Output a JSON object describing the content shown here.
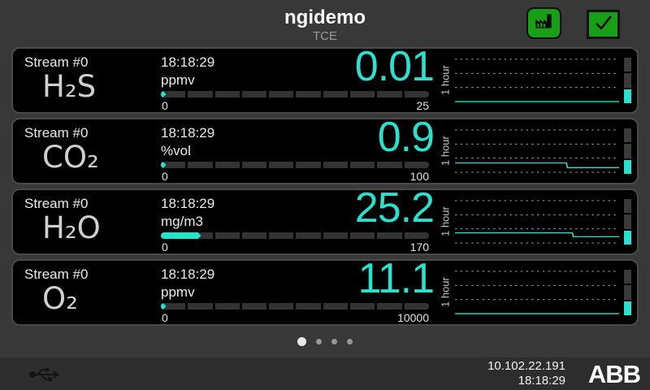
{
  "colors": {
    "accent": "#2BE0CF",
    "button_green": "#17A017",
    "segment_dim": "#3a3a3a"
  },
  "header": {
    "title": "ngidemo",
    "subtitle": "TCE"
  },
  "toolbar": {
    "factory_button": "factory",
    "confirm_button": "confirm"
  },
  "cards": [
    {
      "stream": "Stream #0",
      "formula": "H₂S",
      "time": "18:18:29",
      "unit": "ppmv",
      "value": "0.01",
      "scale_min": "0",
      "scale_max": "25",
      "bar_fill_pct": 2,
      "trend": {
        "window": "1 hour",
        "points": [
          [
            0,
            57
          ],
          [
            165,
            57
          ]
        ],
        "level_segments": [
          "off",
          "off",
          "on"
        ]
      }
    },
    {
      "stream": "Stream #0",
      "formula": "CO₂",
      "time": "18:18:29",
      "unit": "%vol",
      "value": "0.9",
      "scale_min": "0",
      "scale_max": "100",
      "bar_fill_pct": 2,
      "trend": {
        "window": "1 hour",
        "points": [
          [
            0,
            45
          ],
          [
            112,
            45
          ],
          [
            113,
            51
          ],
          [
            165,
            51
          ]
        ],
        "level_segments": [
          "off",
          "off",
          "on"
        ]
      }
    },
    {
      "stream": "Stream #0",
      "formula": "H₂O",
      "time": "18:18:29",
      "unit": "mg/m3",
      "value": "25.2",
      "scale_min": "0",
      "scale_max": "170",
      "bar_fill_pct": 15,
      "trend": {
        "window": "1 hour",
        "points": [
          [
            0,
            44
          ],
          [
            118,
            44
          ],
          [
            119,
            49
          ],
          [
            165,
            49
          ]
        ],
        "level_segments": [
          "off",
          "off",
          "on"
        ]
      }
    },
    {
      "stream": "Stream #0",
      "formula": "O₂",
      "time": "18:18:29",
      "unit": "ppmv",
      "value": "11.1",
      "scale_min": "0",
      "scale_max": "10000",
      "bar_fill_pct": 2,
      "trend": {
        "window": "1 hour",
        "points": [
          [
            0,
            57
          ],
          [
            165,
            57
          ]
        ],
        "level_segments": [
          "off",
          "off",
          "on"
        ]
      }
    }
  ],
  "pagination": {
    "count": 4,
    "active": 0
  },
  "statusbar": {
    "ip": "10.102.22.191",
    "time": "18:18:29",
    "logo": "ABB"
  }
}
